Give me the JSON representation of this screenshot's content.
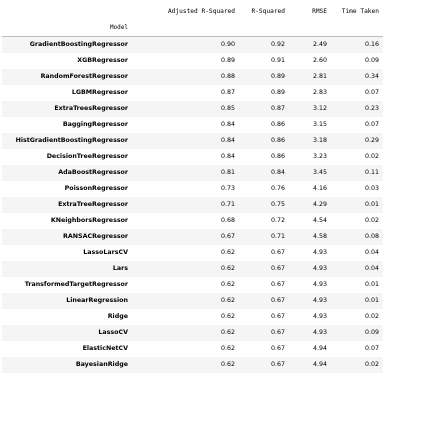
{
  "table": {
    "columns": [
      "Adjusted R-Squared",
      "R-Squared",
      "RMSE",
      "Time Taken"
    ],
    "index_name": "Model",
    "rows": [
      {
        "model": "GradientBoostingRegressor",
        "values": [
          "0.90",
          "0.92",
          "2.49",
          "0.16"
        ]
      },
      {
        "model": "XGBRegressor",
        "values": [
          "0.89",
          "0.91",
          "2.60",
          "0.09"
        ]
      },
      {
        "model": "RandomForestRegressor",
        "values": [
          "0.88",
          "0.89",
          "2.81",
          "0.34"
        ]
      },
      {
        "model": "LGBMRegressor",
        "values": [
          "0.87",
          "0.89",
          "2.83",
          "0.07"
        ]
      },
      {
        "model": "ExtraTreesRegressor",
        "values": [
          "0.85",
          "0.87",
          "3.12",
          "0.23"
        ]
      },
      {
        "model": "BaggingRegressor",
        "values": [
          "0.84",
          "0.86",
          "3.15",
          "0.07"
        ]
      },
      {
        "model": "HistGradientBoostingRegressor",
        "values": [
          "0.84",
          "0.86",
          "3.18",
          "0.29"
        ]
      },
      {
        "model": "DecisionTreeRegressor",
        "values": [
          "0.84",
          "0.86",
          "3.23",
          "0.02"
        ]
      },
      {
        "model": "AdaBoostRegressor",
        "values": [
          "0.81",
          "0.84",
          "3.45",
          "0.11"
        ]
      },
      {
        "model": "PoissonRegressor",
        "values": [
          "0.73",
          "0.76",
          "4.16",
          "0.03"
        ]
      },
      {
        "model": "ExtraTreeRegressor",
        "values": [
          "0.71",
          "0.75",
          "4.29",
          "0.01"
        ]
      },
      {
        "model": "KNeighborsRegressor",
        "values": [
          "0.68",
          "0.72",
          "4.54",
          "0.02"
        ]
      },
      {
        "model": "RANSACRegressor",
        "values": [
          "0.67",
          "0.71",
          "4.58",
          "0.08"
        ]
      },
      {
        "model": "LassoLarsCV",
        "values": [
          "0.62",
          "0.67",
          "4.93",
          "0.04"
        ]
      },
      {
        "model": "Lars",
        "values": [
          "0.62",
          "0.67",
          "4.93",
          "0.04"
        ]
      },
      {
        "model": "TransformedTargetRegressor",
        "values": [
          "0.62",
          "0.67",
          "4.93",
          "0.01"
        ]
      },
      {
        "model": "LinearRegression",
        "values": [
          "0.62",
          "0.67",
          "4.93",
          "0.01"
        ]
      },
      {
        "model": "Ridge",
        "values": [
          "0.62",
          "0.67",
          "4.93",
          "0.02"
        ]
      },
      {
        "model": "LassoCV",
        "values": [
          "0.62",
          "0.67",
          "4.93",
          "0.09"
        ]
      },
      {
        "model": "ElasticNetCV",
        "values": [
          "0.62",
          "0.67",
          "4.94",
          "0.07"
        ]
      },
      {
        "model": "BayesianRidge",
        "values": [
          "0.62",
          "0.67",
          "4.94",
          "0.02"
        ]
      }
    ]
  }
}
